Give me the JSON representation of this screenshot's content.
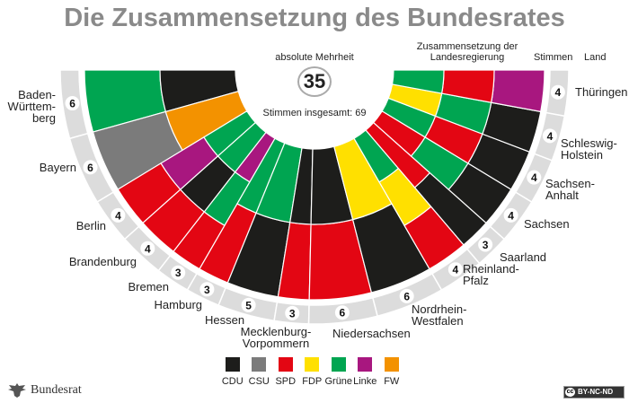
{
  "title": "Die Zusammensetzung des Bundesrates",
  "majority": {
    "label": "absolute Mehrheit",
    "value": "35"
  },
  "total_votes": "Stimmen insgesamt: 69",
  "headers": {
    "coalition": "Zusammensetzung der Landesregierung",
    "votes": "Stimmen",
    "land": "Land"
  },
  "parties": {
    "CDU": {
      "label": "CDU",
      "color": "#1d1d1b"
    },
    "CSU": {
      "label": "CSU",
      "color": "#7b7b7b"
    },
    "SPD": {
      "label": "SPD",
      "color": "#e30613"
    },
    "FDP": {
      "label": "FDP",
      "color": "#ffe000"
    },
    "Gruene": {
      "label": "Grüne",
      "color": "#00a551"
    },
    "Linke": {
      "label": "Linke",
      "color": "#a8177f"
    },
    "FW": {
      "label": "FW",
      "color": "#f39200"
    }
  },
  "legend_order": [
    "CDU",
    "CSU",
    "SPD",
    "FDP",
    "Gruene",
    "Linke",
    "FW"
  ],
  "laender": [
    {
      "name": "Baden-Württemberg",
      "lines": [
        "Baden-",
        "Württem-",
        "berg"
      ],
      "votes": 6,
      "government": [
        "Gruene",
        "CDU"
      ]
    },
    {
      "name": "Bayern",
      "lines": [
        "Bayern"
      ],
      "votes": 6,
      "government": [
        "CSU",
        "FW"
      ]
    },
    {
      "name": "Berlin",
      "lines": [
        "Berlin"
      ],
      "votes": 4,
      "government": [
        "SPD",
        "Linke",
        "Gruene"
      ]
    },
    {
      "name": "Brandenburg",
      "lines": [
        "Brandenburg"
      ],
      "votes": 4,
      "government": [
        "SPD",
        "CDU",
        "Gruene"
      ]
    },
    {
      "name": "Bremen",
      "lines": [
        "Bremen"
      ],
      "votes": 3,
      "government": [
        "SPD",
        "Gruene",
        "Linke"
      ]
    },
    {
      "name": "Hamburg",
      "lines": [
        "Hamburg"
      ],
      "votes": 3,
      "government": [
        "SPD",
        "Gruene"
      ]
    },
    {
      "name": "Hessen",
      "lines": [
        "Hessen"
      ],
      "votes": 5,
      "government": [
        "CDU",
        "Gruene"
      ]
    },
    {
      "name": "Mecklenburg-Vorpommern",
      "lines": [
        "Mecklenburg-",
        "Vorpommern"
      ],
      "votes": 3,
      "government": [
        "SPD",
        "CDU"
      ]
    },
    {
      "name": "Niedersachsen",
      "lines": [
        "Niedersachsen"
      ],
      "votes": 6,
      "government": [
        "SPD",
        "CDU"
      ]
    },
    {
      "name": "Nordrhein-Westfalen",
      "lines": [
        "Nordrhein-",
        "Westfalen"
      ],
      "votes": 6,
      "government": [
        "CDU",
        "FDP"
      ]
    },
    {
      "name": "Rheinland-Pfalz",
      "lines": [
        "Rheinland-",
        "Pfalz"
      ],
      "votes": 4,
      "government": [
        "SPD",
        "FDP",
        "Gruene"
      ]
    },
    {
      "name": "Saarland",
      "lines": [
        "Saarland"
      ],
      "votes": 3,
      "government": [
        "CDU",
        "SPD"
      ]
    },
    {
      "name": "Sachsen",
      "lines": [
        "Sachsen"
      ],
      "votes": 4,
      "government": [
        "CDU",
        "Gruene",
        "SPD"
      ]
    },
    {
      "name": "Sachsen-Anhalt",
      "lines": [
        "Sachsen-",
        "Anhalt"
      ],
      "votes": 4,
      "government": [
        "CDU",
        "SPD",
        "Gruene"
      ]
    },
    {
      "name": "Schleswig-Holstein",
      "lines": [
        "Schleswig-",
        "Holstein"
      ],
      "votes": 4,
      "government": [
        "CDU",
        "Gruene",
        "FDP"
      ]
    },
    {
      "name": "Thüringen",
      "lines": [
        "Thüringen"
      ],
      "votes": 4,
      "government": [
        "Linke",
        "SPD",
        "Gruene"
      ]
    }
  ],
  "logo_text": "Bundesrat",
  "license": "BY-NC-ND"
}
